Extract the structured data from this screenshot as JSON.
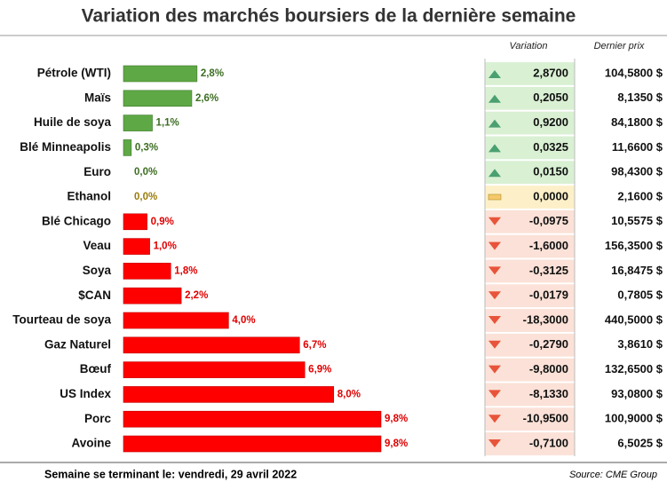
{
  "chart_data": {
    "type": "bar",
    "title": "Variation des marchés boursiers de la dernière semaine",
    "categories": [
      "Pétrole (WTI)",
      "Maïs",
      "Huile de soya",
      "Blé Minneapolis",
      "Euro",
      "Ethanol",
      "Blé Chicago",
      "Veau",
      "Soya",
      "$CAN",
      "Tourteau de soya",
      "Gaz Naturel",
      "Bœuf",
      "US Index",
      "Porc",
      "Avoine"
    ],
    "values": [
      2.8,
      2.6,
      1.1,
      0.3,
      0.0,
      0.0,
      0.9,
      1.0,
      1.8,
      2.2,
      4.0,
      6.7,
      6.9,
      8.0,
      9.8,
      9.8
    ],
    "value_labels": [
      "2,8%",
      "2,6%",
      "1,1%",
      "0,3%",
      "0,0%",
      "0,0%",
      "0,9%",
      "1,0%",
      "1,8%",
      "2,2%",
      "4,0%",
      "6,7%",
      "6,9%",
      "8,0%",
      "9,8%",
      "9,8%"
    ],
    "xlim": [
      0,
      9.8
    ],
    "colors": {
      "up": "#5ea845",
      "flat": "#b8960c",
      "down": "#ff0000"
    },
    "table": {
      "headers": [
        "Variation",
        "Dernier prix"
      ],
      "variation": [
        2.87,
        0.205,
        0.92,
        0.0325,
        0.015,
        0,
        -0.0975,
        -1.6,
        -0.3125,
        -0.0179,
        -18.3,
        -0.279,
        -9.8,
        -8.133,
        -10.95,
        -0.71
      ],
      "variation_labels": [
        "2,8700",
        "0,2050",
        "0,9200",
        "0,0325",
        "0,0150",
        "0,0000",
        "-0,0975",
        "-1,6000",
        "-0,3125",
        "-0,0179",
        "-18,3000",
        "-0,2790",
        "-9,8000",
        "-8,1330",
        "-10,9500",
        "-0,7100"
      ],
      "prices": [
        104.58,
        8.135,
        84.18,
        11.66,
        98.43,
        2.16,
        10.5575,
        156.35,
        16.8475,
        0.7805,
        440.5,
        3.861,
        132.65,
        93.08,
        100.9,
        6.5025
      ],
      "price_labels": [
        "104,5800 $",
        "8,1350 $",
        "84,1800 $",
        "11,6600 $",
        "98,4300 $",
        "2,1600 $",
        "10,5575 $",
        "156,3500 $",
        "16,8475 $",
        "0,7805 $",
        "440,5000 $",
        "3,8610 $",
        "132,6500 $",
        "93,0800 $",
        "100,9000 $",
        "6,5025 $"
      ]
    },
    "footer": "Semaine se terminant le: vendredi, 29 avril 2022",
    "source": "Source: CME Group"
  }
}
